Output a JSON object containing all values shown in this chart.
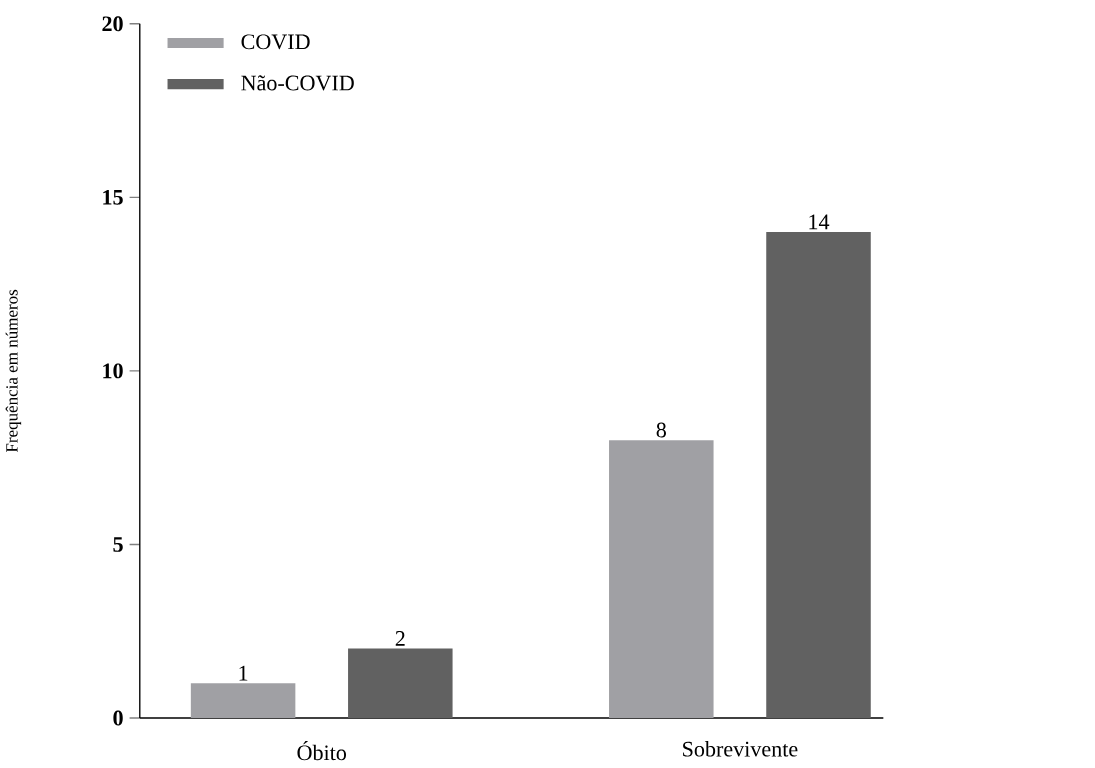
{
  "chart_data": {
    "type": "bar",
    "ylabel": "Frequência em números",
    "categories": [
      "Óbito",
      "Sobrevivente"
    ],
    "series": [
      {
        "name": "COVID",
        "color": "#a0a0a4",
        "values": [
          1,
          8
        ]
      },
      {
        "name": "Não-COVID",
        "color": "#616161",
        "values": [
          2,
          14
        ]
      }
    ],
    "ylim": [
      0,
      20
    ],
    "yticks": [
      0,
      5,
      10,
      15,
      20
    ],
    "data_labels": true,
    "legend": "top left"
  }
}
